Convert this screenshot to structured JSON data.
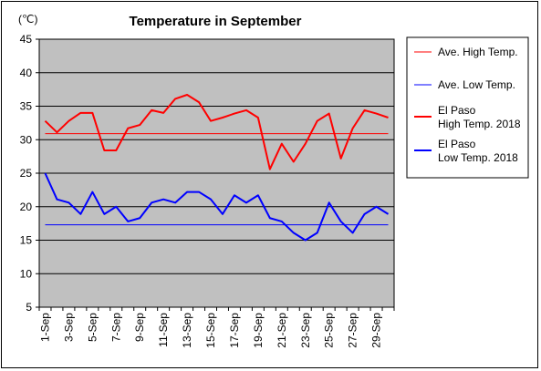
{
  "chart_data": {
    "type": "line",
    "title": "Temperature in September",
    "yunit": "(℃)",
    "xlabel": "",
    "ylabel": "",
    "ylim": [
      5,
      45
    ],
    "yticks": [
      5,
      10,
      15,
      20,
      25,
      30,
      35,
      40,
      45
    ],
    "x": [
      "1-Sep",
      "2-Sep",
      "3-Sep",
      "4-Sep",
      "5-Sep",
      "6-Sep",
      "7-Sep",
      "8-Sep",
      "9-Sep",
      "10-Sep",
      "11-Sep",
      "12-Sep",
      "13-Sep",
      "14-Sep",
      "15-Sep",
      "16-Sep",
      "17-Sep",
      "18-Sep",
      "19-Sep",
      "20-Sep",
      "21-Sep",
      "22-Sep",
      "23-Sep",
      "24-Sep",
      "25-Sep",
      "26-Sep",
      "27-Sep",
      "28-Sep",
      "29-Sep",
      "30-Sep"
    ],
    "xtick_labels": [
      "1-Sep",
      "3-Sep",
      "5-Sep",
      "7-Sep",
      "9-Sep",
      "11-Sep",
      "13-Sep",
      "15-Sep",
      "17-Sep",
      "19-Sep",
      "21-Sep",
      "23-Sep",
      "25-Sep",
      "27-Sep",
      "29-Sep"
    ],
    "grid": true,
    "plot_background": "#c0c0c0",
    "legend_position": "right",
    "series": [
      {
        "name": "Ave. High Temp.",
        "color": "#ff0000",
        "width": 1,
        "constant": 30.9
      },
      {
        "name": "Ave. Low Temp.",
        "color": "#0000ff",
        "width": 1,
        "constant": 17.3
      },
      {
        "name_lines": [
          "El Paso",
          "High Temp. 2018"
        ],
        "color": "#ff0000",
        "width": 2,
        "values": [
          32.8,
          31.1,
          32.8,
          34.0,
          34.0,
          28.4,
          28.4,
          31.7,
          32.2,
          34.4,
          34.0,
          36.1,
          36.7,
          35.6,
          32.8,
          33.3,
          33.9,
          34.4,
          33.3,
          25.6,
          29.4,
          26.7,
          29.4,
          32.8,
          33.9,
          27.2,
          31.7,
          34.4,
          33.9,
          33.3
        ]
      },
      {
        "name_lines": [
          "El Paso",
          "Low Temp. 2018"
        ],
        "color": "#0000ff",
        "width": 2,
        "values": [
          25.0,
          21.1,
          20.6,
          18.9,
          22.2,
          18.9,
          20.0,
          17.8,
          18.3,
          20.6,
          21.1,
          20.6,
          22.2,
          22.2,
          21.1,
          18.9,
          21.7,
          20.6,
          21.7,
          18.3,
          17.8,
          16.1,
          15.0,
          16.1,
          20.6,
          17.8,
          16.1,
          18.9,
          20.0,
          18.9
        ]
      }
    ]
  }
}
